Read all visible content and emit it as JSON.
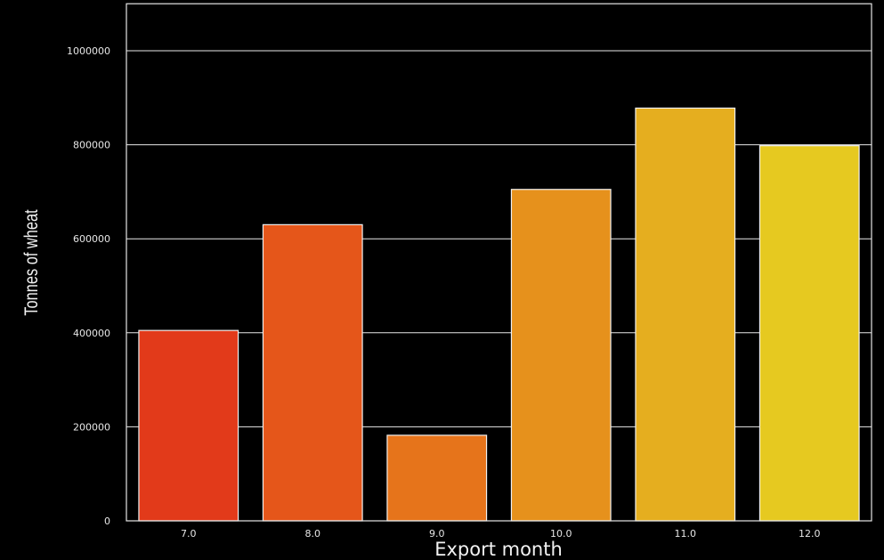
{
  "chart_data": {
    "type": "bar",
    "title": "",
    "xlabel": "Export month",
    "ylabel": "Tonnes of wheat",
    "categories": [
      "7.0",
      "8.0",
      "9.0",
      "10.0",
      "11.0",
      "12.0"
    ],
    "values": [
      405000,
      630000,
      182000,
      705000,
      878000,
      798000
    ],
    "colors": [
      "#e23a1a",
      "#e5561a",
      "#e6741b",
      "#e6911c",
      "#e5ae1f",
      "#e6c920"
    ],
    "ylim": [
      0,
      1100000
    ],
    "yticks": [
      0,
      200000,
      400000,
      600000,
      800000,
      1000000
    ],
    "ytick_labels": [
      "0",
      "200000",
      "400000",
      "600000",
      "800000",
      "1000000"
    ],
    "grid": true,
    "background": "#000000",
    "gridline_color": "#e8e8e8"
  }
}
